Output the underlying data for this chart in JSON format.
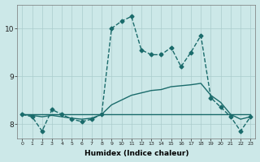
{
  "xlabel": "Humidex (Indice chaleur)",
  "ylabel": "",
  "x_ticks": [
    0,
    1,
    2,
    3,
    4,
    5,
    6,
    7,
    8,
    9,
    10,
    11,
    12,
    13,
    14,
    15,
    16,
    17,
    18,
    19,
    20,
    21,
    22,
    23
  ],
  "xlim": [
    -0.5,
    23.5
  ],
  "ylim": [
    7.7,
    10.5
  ],
  "yticks": [
    8,
    9,
    10
  ],
  "bg_color": "#cce8e8",
  "grid_color": "#aacccc",
  "line_color": "#1a6b6b",
  "series": [
    {
      "x": [
        0,
        1,
        2,
        3,
        4,
        5,
        6,
        7,
        8,
        9,
        10,
        11,
        12,
        13,
        14,
        15,
        16,
        17,
        18,
        19,
        20,
        21,
        22,
        23
      ],
      "y": [
        8.2,
        8.15,
        7.85,
        8.3,
        8.2,
        8.1,
        8.05,
        8.1,
        8.2,
        10.0,
        10.15,
        10.25,
        9.55,
        9.45,
        9.45,
        9.6,
        9.2,
        9.5,
        9.85,
        8.55,
        8.35,
        8.15,
        7.85,
        8.15
      ],
      "style": "--",
      "marker": "D",
      "markersize": 2.5,
      "linewidth": 1.0
    },
    {
      "x": [
        0,
        1,
        2,
        3,
        4,
        5,
        6,
        7,
        8,
        9,
        10,
        11,
        12,
        13,
        14,
        15,
        16,
        17,
        18,
        19,
        20,
        21,
        22,
        23
      ],
      "y": [
        8.2,
        8.2,
        8.2,
        8.2,
        8.2,
        8.2,
        8.2,
        8.2,
        8.2,
        8.2,
        8.2,
        8.2,
        8.2,
        8.2,
        8.2,
        8.2,
        8.2,
        8.2,
        8.2,
        8.2,
        8.2,
        8.2,
        8.2,
        8.2
      ],
      "style": "-",
      "marker": null,
      "markersize": 0,
      "linewidth": 1.0
    },
    {
      "x": [
        0,
        1,
        2,
        3,
        4,
        5,
        6,
        7,
        8,
        9,
        10,
        11,
        12,
        13,
        14,
        15,
        16,
        17,
        18,
        19,
        20,
        21,
        22,
        23
      ],
      "y": [
        8.2,
        8.18,
        8.15,
        8.18,
        8.15,
        8.12,
        8.1,
        8.12,
        8.2,
        8.4,
        8.5,
        8.6,
        8.65,
        8.7,
        8.72,
        8.78,
        8.8,
        8.82,
        8.85,
        8.6,
        8.45,
        8.2,
        8.1,
        8.15
      ],
      "style": "-",
      "marker": null,
      "markersize": 0,
      "linewidth": 1.0
    }
  ]
}
